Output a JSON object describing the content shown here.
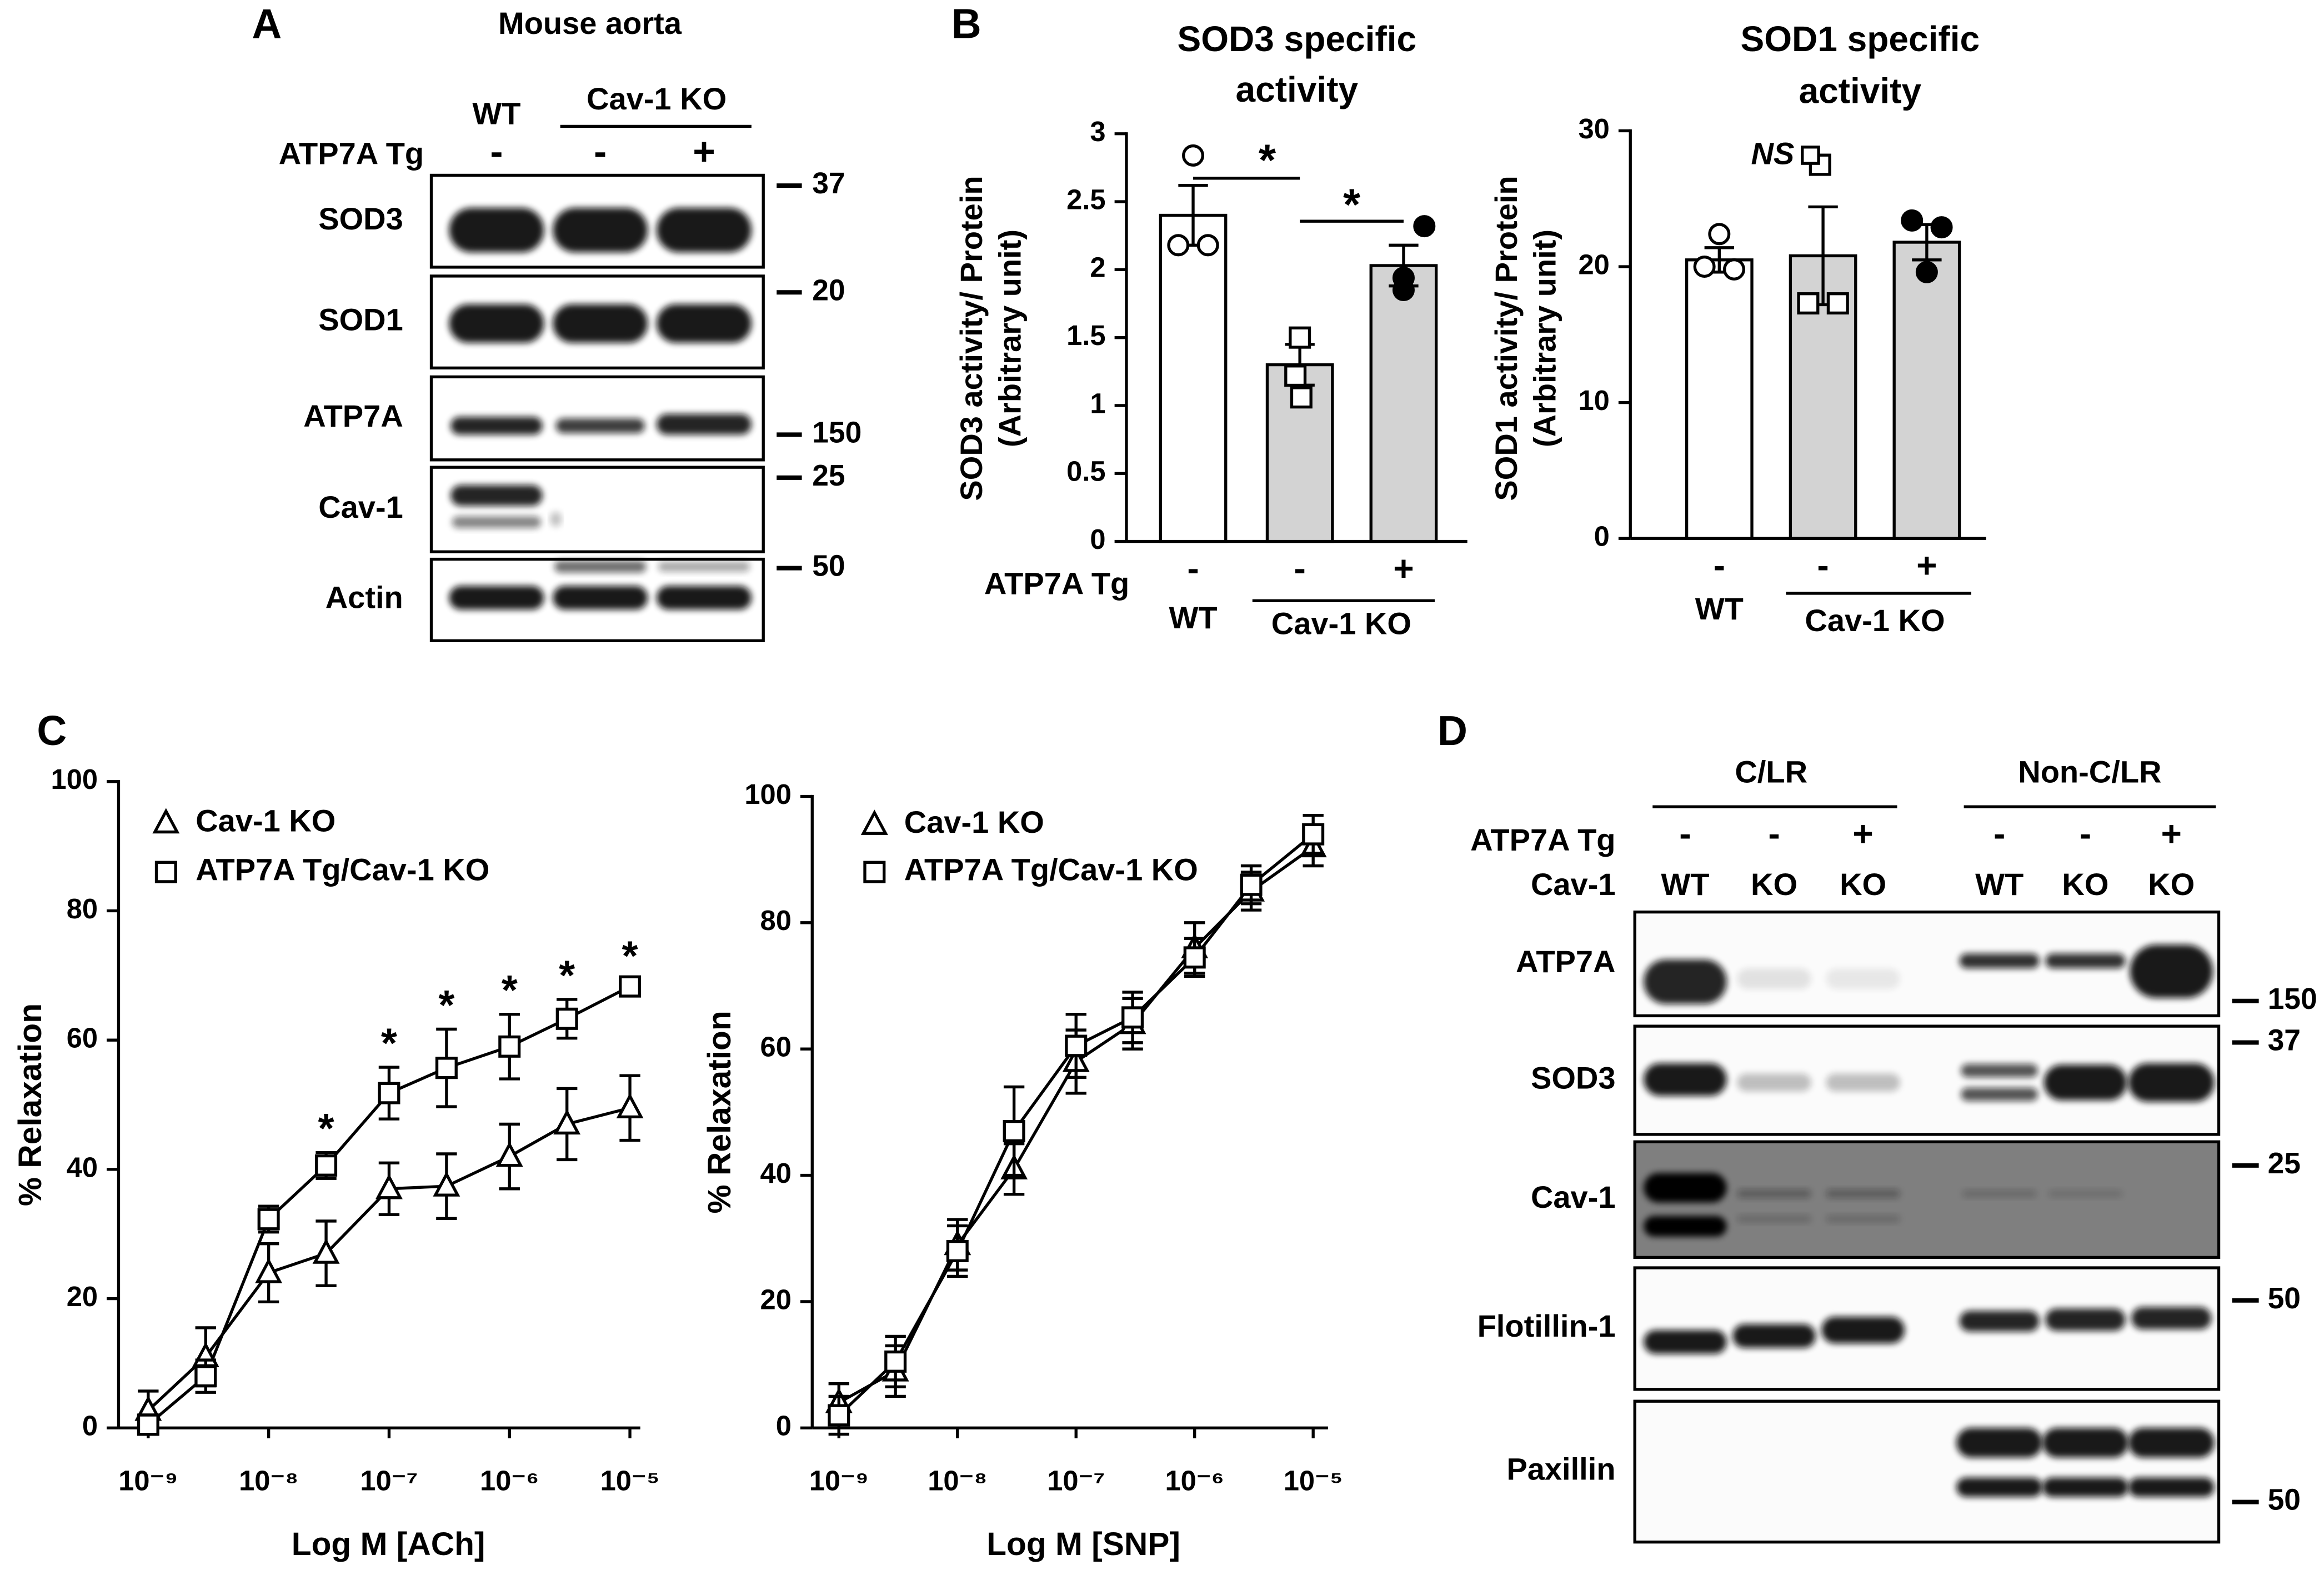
{
  "panel_a": {
    "letter": "A",
    "title": "Mouse aorta",
    "wt": "WT",
    "ko": "Cav-1 KO",
    "row_label": "ATP7A Tg",
    "signs": [
      "-",
      "-",
      "+"
    ],
    "blots": [
      "SOD3",
      "SOD1",
      "ATP7A",
      "Cav-1",
      "Actin"
    ],
    "markers": [
      "37",
      "20",
      "150",
      "25",
      "50"
    ]
  },
  "panel_b": {
    "letter": "B"
  },
  "panel_c": {
    "letter": "C"
  },
  "panel_d": {
    "letter": "D",
    "groups": [
      "C/LR",
      "Non-C/LR"
    ],
    "row_labels": [
      "ATP7A Tg",
      "Cav-1"
    ],
    "signs": [
      "-",
      "-",
      "+",
      "-",
      "-",
      "+"
    ],
    "genotypes": [
      "WT",
      "KO",
      "KO",
      "WT",
      "KO",
      "KO"
    ],
    "blots": [
      "ATP7A",
      "SOD3",
      "Cav-1",
      "Flotillin-1",
      "Paxillin"
    ],
    "markers": [
      "150",
      "37",
      "25",
      "50",
      "50"
    ]
  },
  "chart_data": [
    {
      "type": "bar",
      "title": [
        "SOD3 specific",
        "activity"
      ],
      "ylabel": [
        "SOD3 activity/ Protein",
        "(Arbitrary unit)"
      ],
      "categories": [
        "-",
        "-",
        "+"
      ],
      "row_label": "ATP7A Tg",
      "groups": [
        "WT",
        "Cav-1 KO"
      ],
      "values": [
        2.4,
        1.3,
        2.03
      ],
      "errors": [
        0.22,
        0.15,
        0.15
      ],
      "points": [
        [
          2.84,
          2.18,
          2.18
        ],
        [
          1.5,
          1.22,
          1.06
        ],
        [
          2.32,
          1.85,
          1.94
        ]
      ],
      "colors": [
        "#ffffff",
        "#d3d3d3",
        "#d3d3d3"
      ],
      "point_markers": [
        "circle-open",
        "square-open",
        "circle-filled"
      ],
      "ylim": [
        0,
        3
      ],
      "yticks": [
        0,
        0.5,
        1,
        1.5,
        2,
        2.5,
        3
      ],
      "annotations": [
        "*",
        "*"
      ]
    },
    {
      "type": "bar",
      "title": [
        "SOD1 specific",
        "activity"
      ],
      "ylabel": [
        "SOD1 activity/ Protein",
        "(Arbitrary unit)"
      ],
      "categories": [
        "-",
        "-",
        "+"
      ],
      "groups": [
        "WT",
        "Cav-1 KO"
      ],
      "values": [
        20.5,
        20.8,
        21.8
      ],
      "errors": [
        0.9,
        3.6,
        1.3
      ],
      "points": [
        [
          22.4,
          20,
          19.8
        ],
        [
          27.5,
          17.3,
          17.3
        ],
        [
          23.4,
          22.9,
          19.6
        ]
      ],
      "colors": [
        "#ffffff",
        "#d3d3d3",
        "#d3d3d3"
      ],
      "point_markers": [
        "circle-open",
        "square-open",
        "circle-filled"
      ],
      "ylim": [
        0,
        30
      ],
      "yticks": [
        0,
        10,
        20,
        30
      ],
      "annotations": [
        "NS"
      ]
    },
    {
      "type": "line",
      "xscale": "log",
      "xlabel": "Log M [ACh]",
      "ylabel": "% Relaxation",
      "x": [
        1e-09,
        3e-09,
        1e-08,
        3e-08,
        1e-07,
        3e-07,
        1e-06,
        3e-06,
        1e-05
      ],
      "xlim": [
        1e-09,
        1e-05
      ],
      "xticks": [
        {
          "value": 1e-09,
          "label": "10⁻⁹"
        },
        {
          "value": 1e-08,
          "label": "10⁻⁸"
        },
        {
          "value": 1e-07,
          "label": "10⁻⁷"
        },
        {
          "value": 1e-06,
          "label": "10⁻⁶"
        },
        {
          "value": 1e-05,
          "label": "10⁻⁵"
        }
      ],
      "ylim": [
        0,
        100
      ],
      "yticks": [
        0,
        20,
        40,
        60,
        80,
        100
      ],
      "series": [
        {
          "name": "Cav-1 KO",
          "marker": "triangle",
          "values": [
            2.7,
            11,
            24,
            27,
            37,
            37.4,
            42,
            47,
            49.5
          ],
          "errors": [
            3,
            4.5,
            4.5,
            5,
            4,
            5,
            5,
            5.5,
            5
          ]
        },
        {
          "name": "ATP7A Tg/Cav-1 KO",
          "marker": "square",
          "values": [
            0.5,
            8,
            32.3,
            40.6,
            51.8,
            55.7,
            59,
            63.3,
            68.3
          ],
          "errors": [
            1.5,
            2.5,
            2,
            2,
            4,
            6,
            5,
            3,
            1
          ]
        }
      ],
      "significance": [
        null,
        null,
        null,
        "*",
        "*",
        "*",
        "*",
        "*",
        "*"
      ]
    },
    {
      "type": "line",
      "xscale": "log",
      "xlabel": "Log M [SNP]",
      "ylabel": "% Relaxation",
      "x": [
        1e-09,
        3e-09,
        1e-08,
        3e-08,
        1e-07,
        3e-07,
        1e-06,
        3e-06,
        1e-05
      ],
      "xlim": [
        1e-09,
        1e-05
      ],
      "xticks": [
        {
          "value": 1e-09,
          "label": "10⁻⁹"
        },
        {
          "value": 1e-08,
          "label": "10⁻⁸"
        },
        {
          "value": 1e-07,
          "label": "10⁻⁷"
        },
        {
          "value": 1e-06,
          "label": "10⁻⁶"
        },
        {
          "value": 1e-05,
          "label": "10⁻⁵"
        }
      ],
      "ylim": [
        0,
        100
      ],
      "yticks": [
        0,
        20,
        40,
        60,
        80,
        100
      ],
      "series": [
        {
          "name": "Cav-1 KO",
          "marker": "triangle",
          "values": [
            4,
            9,
            29,
            41,
            58,
            64,
            76,
            85,
            92
          ],
          "errors": [
            3,
            4,
            4,
            4,
            5,
            4,
            4,
            3,
            3
          ]
        },
        {
          "name": "ATP7A Tg/Cav-1 KO",
          "marker": "square",
          "values": [
            2,
            10.5,
            28,
            47,
            60.5,
            65,
            74.5,
            86,
            94
          ],
          "errors": [
            3,
            4,
            4,
            7,
            5,
            4,
            3,
            3,
            3
          ]
        }
      ]
    }
  ]
}
